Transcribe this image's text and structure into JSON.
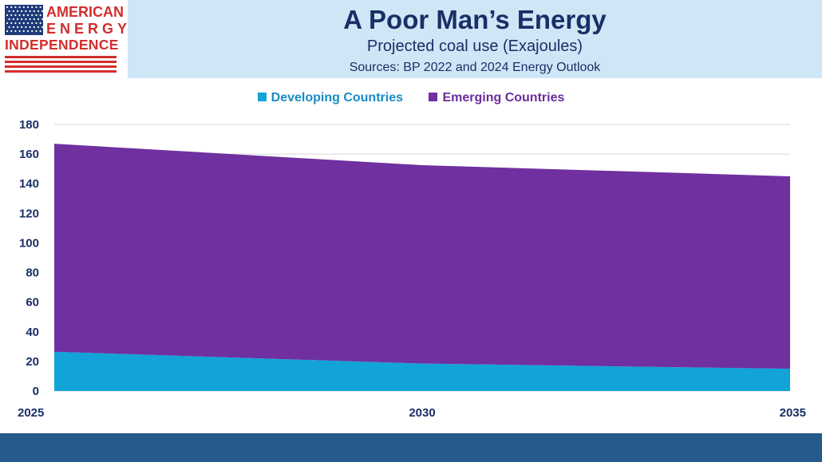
{
  "header": {
    "logo_lines": [
      "AMERICAN",
      "ENERGY",
      "INDEPENDENCE"
    ],
    "logo_colors": {
      "red": "#d22e2e",
      "blue": "#1f3c7a"
    },
    "band_color": "#cfe6f7"
  },
  "footer": {
    "band_color": "#255a8a"
  },
  "chart_data": {
    "type": "area",
    "stacked": true,
    "title": "A Poor Man’s Energy",
    "subtitle": "Projected coal use (Exajoules)",
    "source": "Sources: BP 2022 and 2024 Energy Outlook",
    "x": [
      2025,
      2030,
      2035
    ],
    "x_tick_labels": [
      "2025",
      "2030",
      "2035"
    ],
    "ylim": [
      0,
      180
    ],
    "y_ticks": [
      0,
      20,
      40,
      60,
      80,
      100,
      120,
      140,
      160,
      180
    ],
    "grid": true,
    "legend_position": "top",
    "series": [
      {
        "name": "Developing Countries",
        "color": "#12a3d8",
        "values": [
          26.5,
          18.5,
          15
        ]
      },
      {
        "name": "Emerging Countries",
        "color": "#7030a0",
        "values": [
          140.5,
          134,
          130
        ]
      }
    ]
  }
}
